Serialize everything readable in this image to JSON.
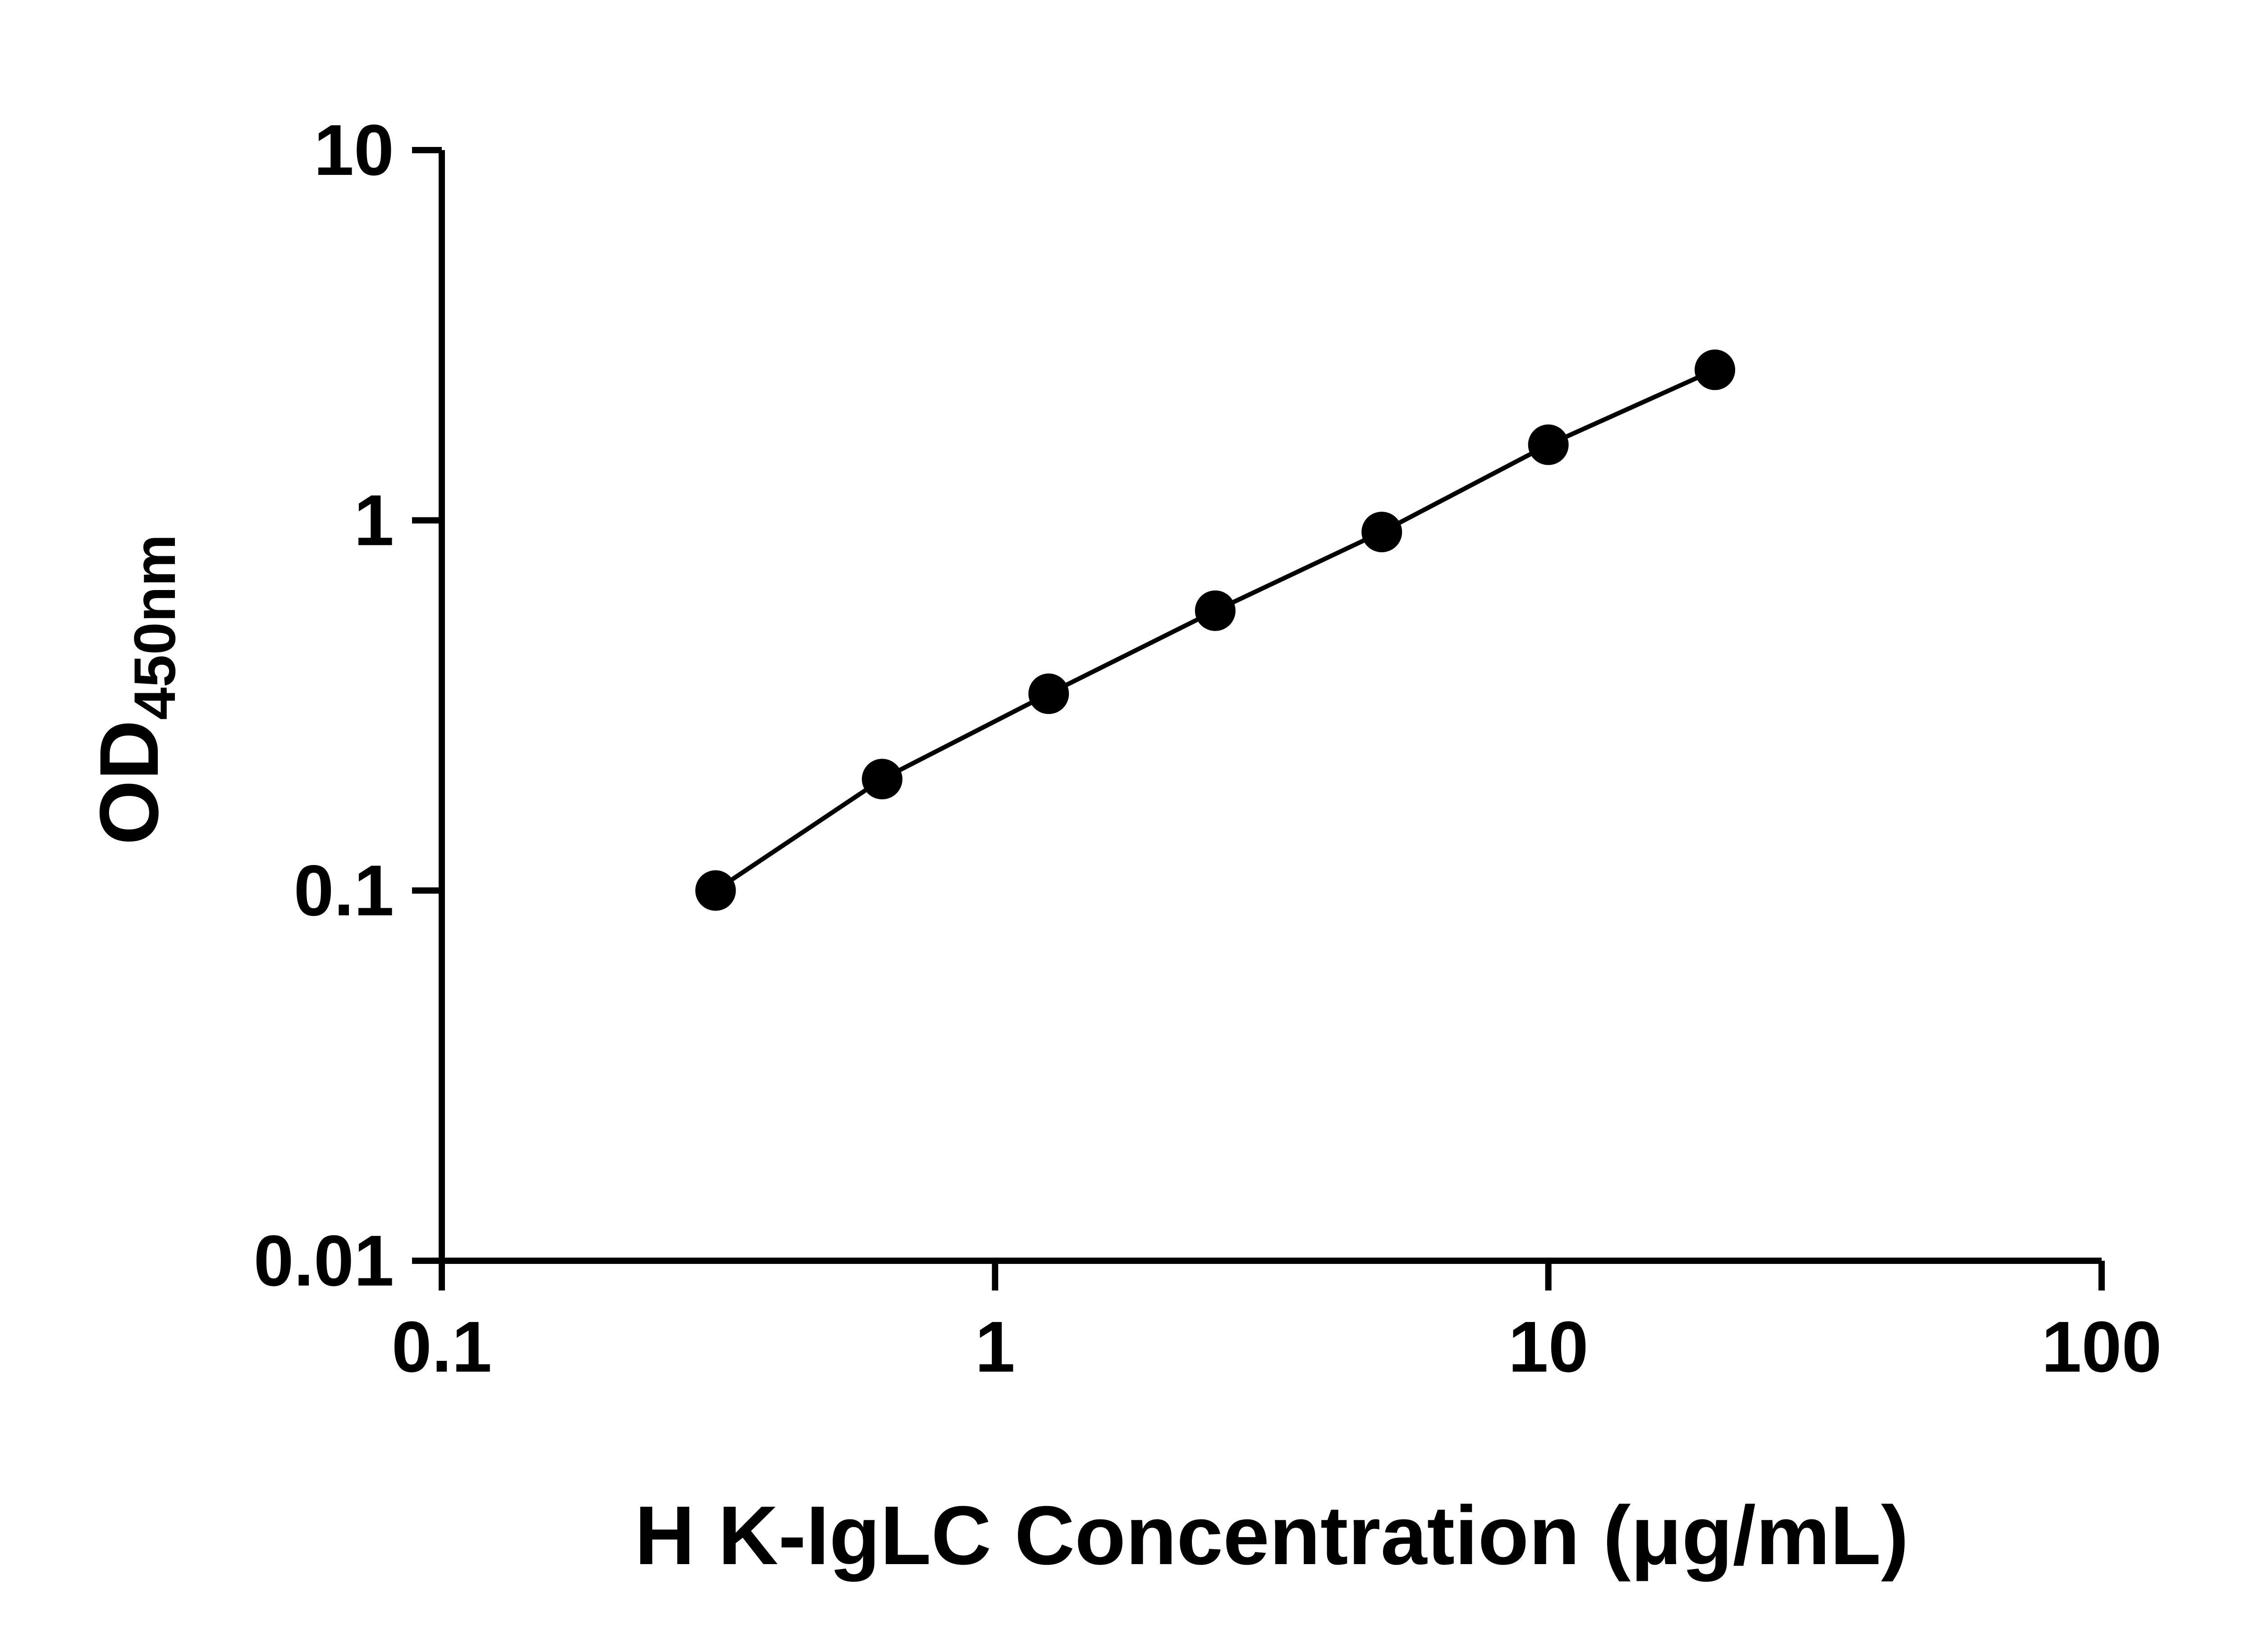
{
  "figure": {
    "background": "#ffffff"
  },
  "chart_data": {
    "type": "line",
    "x_scale": "log",
    "y_scale": "log",
    "x": [
      0.3125,
      0.625,
      1.25,
      2.5,
      5,
      10,
      20
    ],
    "y": [
      0.1,
      0.2,
      0.34,
      0.57,
      0.93,
      1.6,
      2.55
    ],
    "xlabel": "H K-IgLC Concentration (μg/mL)",
    "ylabel_main": "OD",
    "ylabel_sub": "450nm",
    "xlim": [
      0.1,
      100
    ],
    "ylim": [
      0.01,
      10
    ],
    "x_tick_labels": [
      "0.1",
      "1",
      "10",
      "100"
    ],
    "y_tick_labels": [
      "0.01",
      "0.1",
      "1",
      "10"
    ],
    "grid": false,
    "legend": "none",
    "marker": "filled-circle",
    "marker_color": "#000000",
    "line_color": "#000000",
    "axis_color": "#000000",
    "background": "#ffffff"
  }
}
